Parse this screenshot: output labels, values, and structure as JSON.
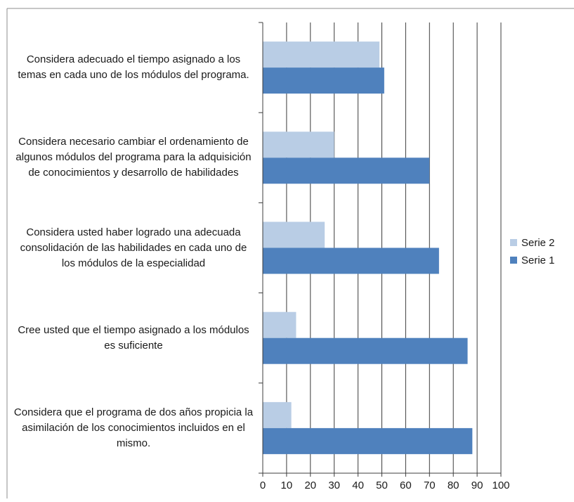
{
  "chart_data": {
    "type": "bar",
    "orientation": "horizontal",
    "categories": [
      "Considera adecuado el tiempo asignado a los temas en cada uno de los módulos del programa.",
      "Considera necesario cambiar el ordenamiento de algunos módulos del programa para la adquisición de conocimientos y desarrollo de habilidades",
      "Considera usted haber logrado una adecuada consolidación de las habilidades en cada uno de los módulos de la especialidad",
      "Cree usted que el tiempo asignado a los módulos es suficiente",
      "Considera que el programa de dos años propicia la asimilación de los conocimientos  incluidos en el mismo."
    ],
    "series": [
      {
        "name": "Serie 2",
        "color": "#b9cde5",
        "values": [
          49,
          30,
          26,
          14,
          12
        ]
      },
      {
        "name": "Serie 1",
        "color": "#4f81bd",
        "values": [
          51,
          70,
          74,
          86,
          88
        ]
      }
    ],
    "xlim": [
      0,
      100
    ],
    "x_ticks": [
      "0",
      "10",
      "20",
      "30",
      "40",
      "50",
      "60",
      "70",
      "80",
      "90",
      "100"
    ],
    "grid": true,
    "legend": "right",
    "title": "",
    "xlabel": "",
    "ylabel": ""
  }
}
